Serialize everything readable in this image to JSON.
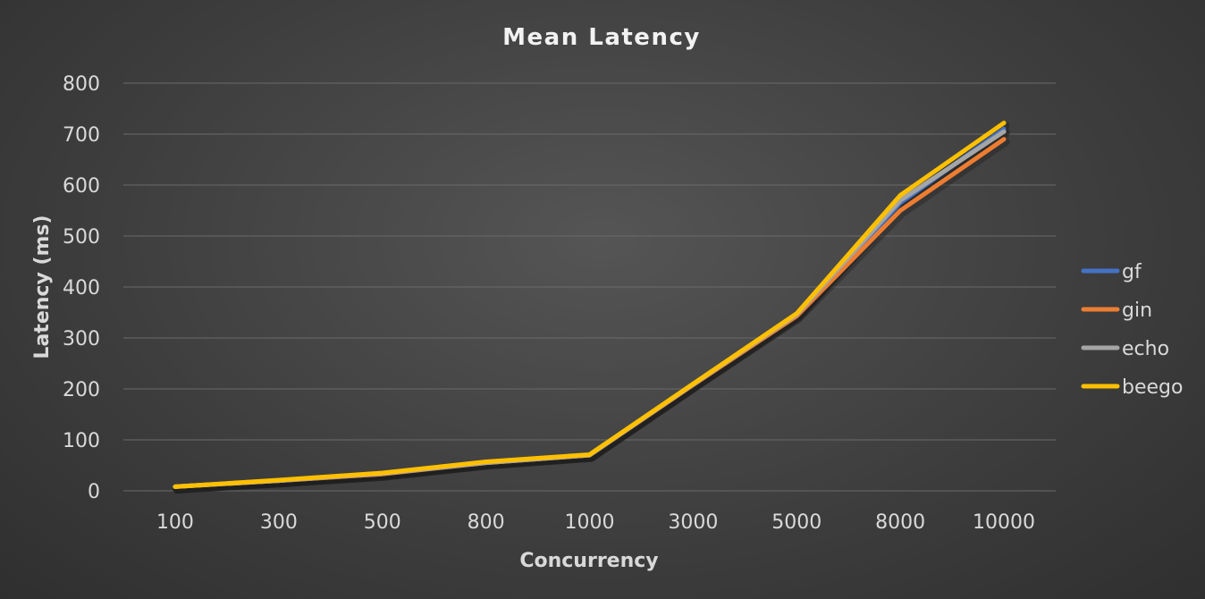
{
  "chart_data": {
    "type": "line",
    "title": "Mean Latency",
    "xlabel": "Concurrency",
    "ylabel": "Latency (ms)",
    "categories": [
      "100",
      "300",
      "500",
      "800",
      "1000",
      "3000",
      "5000",
      "8000",
      "10000"
    ],
    "ylim": [
      0,
      800
    ],
    "yticks": [
      0,
      100,
      200,
      300,
      400,
      500,
      600,
      700,
      800
    ],
    "grid": true,
    "legend_position": "right",
    "series": [
      {
        "name": "gf",
        "color": "#4472C4",
        "values": [
          8,
          20,
          33,
          55,
          70,
          208,
          345,
          565,
          710
        ]
      },
      {
        "name": "gin",
        "color": "#ED7D31",
        "values": [
          8,
          20,
          33,
          55,
          70,
          208,
          343,
          550,
          690
        ]
      },
      {
        "name": "echo",
        "color": "#A5A5A5",
        "values": [
          8,
          20,
          34,
          55,
          70,
          209,
          346,
          570,
          705
        ]
      },
      {
        "name": "beego",
        "color": "#FFC000",
        "values": [
          8,
          21,
          35,
          57,
          71,
          210,
          348,
          580,
          722
        ]
      }
    ]
  }
}
